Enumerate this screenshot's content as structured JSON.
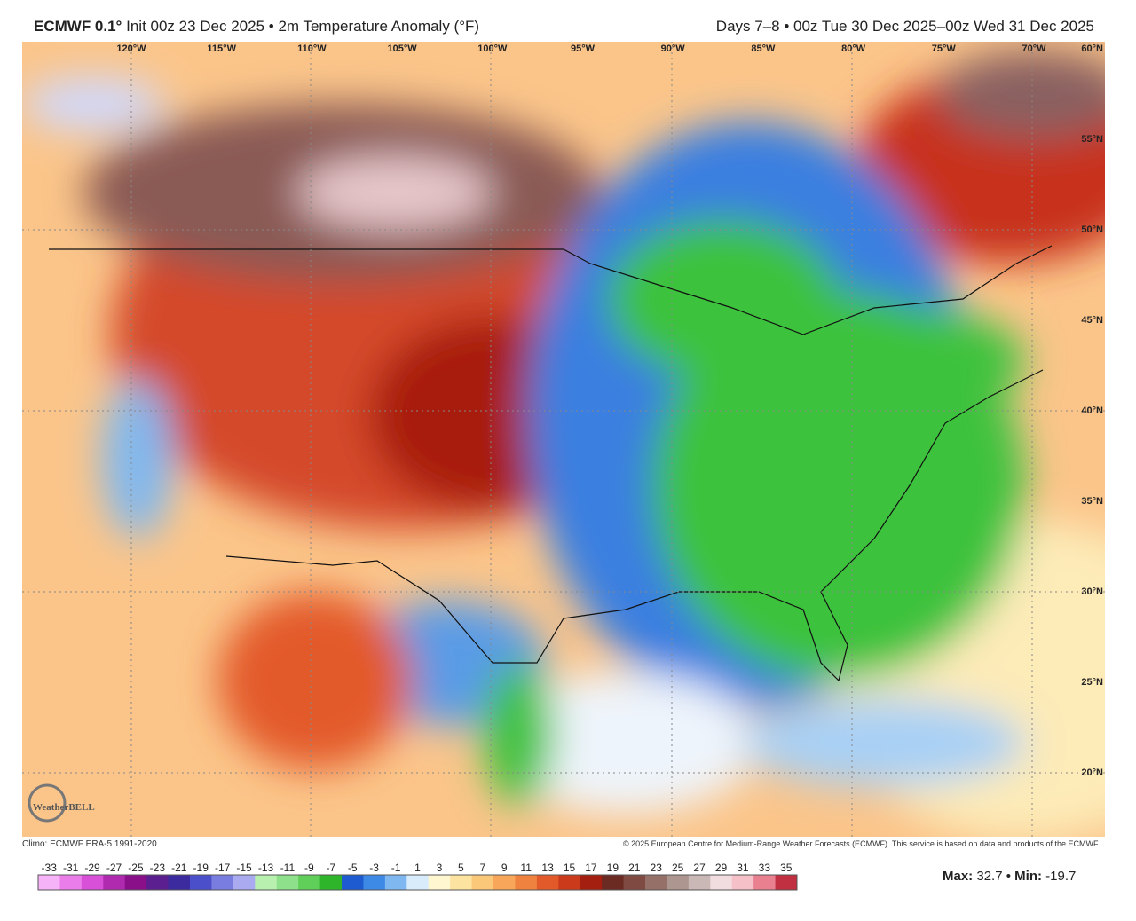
{
  "header": {
    "model": "ECMWF 0.1°",
    "run": "Init 00z 23 Dec 2025 • 2m Temperature Anomaly (°F)",
    "valid": "Days 7–8 • 00z Tue 30 Dec 2025–00z Wed 31 Dec 2025"
  },
  "map": {
    "longitude_labels": [
      "120°W",
      "115°W",
      "110°W",
      "105°W",
      "100°W",
      "95°W",
      "90°W",
      "85°W",
      "80°W",
      "75°W",
      "70°W"
    ],
    "latitude_labels": [
      "60°N",
      "55°N",
      "50°N",
      "45°N",
      "40°N",
      "35°N",
      "30°N",
      "25°N",
      "20°N"
    ],
    "logo": "WeatherBELL"
  },
  "footer": {
    "climo": "Climo: ECMWF ERA-5 1991-2020",
    "copyright": "© 2025 European Centre for Medium-Range Weather Forecasts (ECMWF). This service is based on data and products of the ECMWF."
  },
  "colorbar": {
    "labels": [
      -33,
      -31,
      -29,
      -27,
      -25,
      -23,
      -21,
      -19,
      -17,
      -15,
      -13,
      -11,
      -9,
      -7,
      -5,
      -3,
      -1,
      1,
      3,
      5,
      7,
      9,
      11,
      13,
      15,
      17,
      19,
      21,
      23,
      25,
      27,
      29,
      31,
      33,
      35
    ],
    "colors": [
      "#f7b3f7",
      "#eb7deb",
      "#d84fd8",
      "#b02ab0",
      "#8a108a",
      "#5c1f8f",
      "#3b2b9e",
      "#4b4fc9",
      "#7a7de0",
      "#a9aaf0",
      "#b8f0b0",
      "#8fe08a",
      "#5fcf5a",
      "#2fb52a",
      "#1f5bd0",
      "#3d89e6",
      "#7fb8f0",
      "#d8ecfb",
      "#fff7d0",
      "#fde3a0",
      "#fbc87a",
      "#f7a65a",
      "#f0823f",
      "#e35a2a",
      "#cc3a1c",
      "#a51f10",
      "#6b2b22",
      "#7e4a42",
      "#957069",
      "#ad9690",
      "#c9b8b5",
      "#f1dde0",
      "#f5c0c8",
      "#e88090",
      "#c03040"
    ]
  },
  "stats": {
    "max_label": "Max:",
    "max": 32.7,
    "separator": "•",
    "min_label": "Min:",
    "min": -19.7
  }
}
